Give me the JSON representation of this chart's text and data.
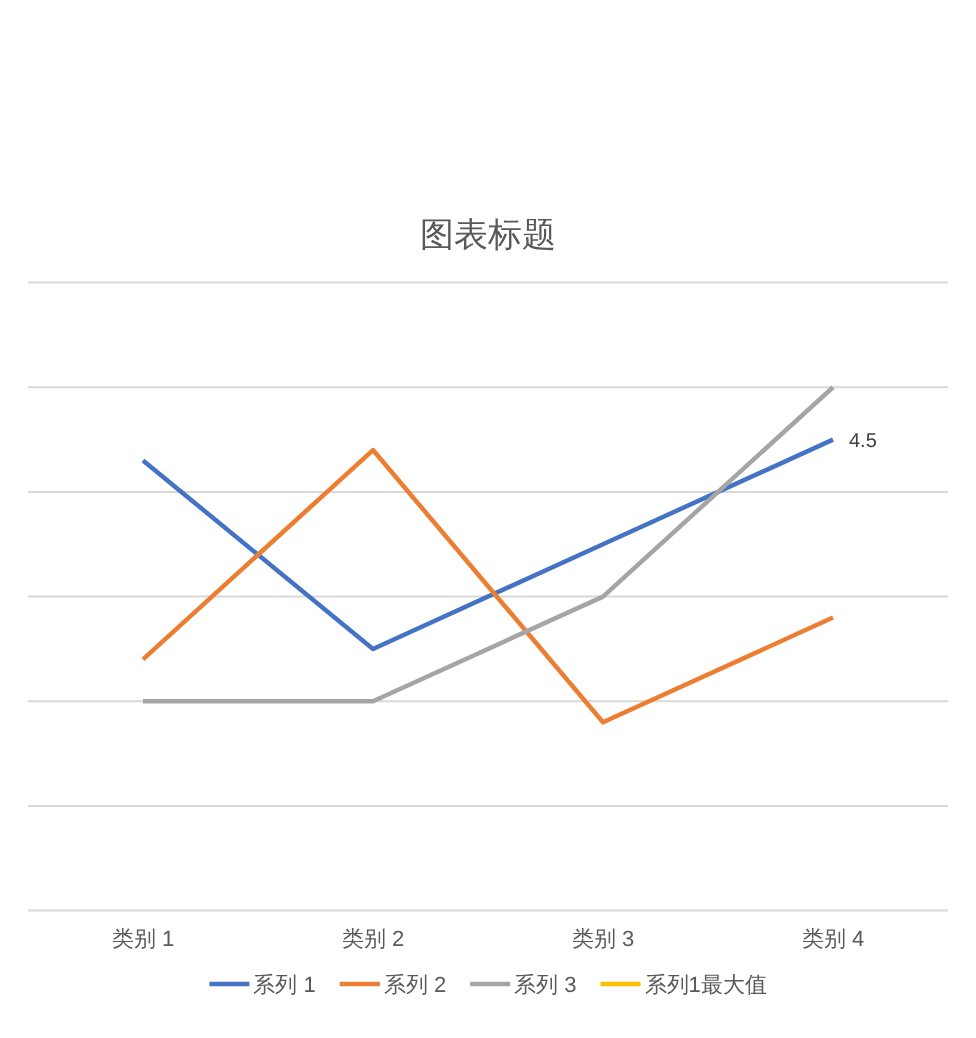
{
  "chart_data": {
    "type": "line",
    "title": "图表标题",
    "categories": [
      "类别 1",
      "类别 2",
      "类别 3",
      "类别 4"
    ],
    "series": [
      {
        "name": "系列 1",
        "color": "#4472c4",
        "values": [
          4.3,
          2.5,
          3.5,
          4.5
        ],
        "value_labels": [
          null,
          null,
          null,
          "4.5"
        ]
      },
      {
        "name": "系列 2",
        "color": "#ed7d31",
        "values": [
          2.4,
          4.4,
          1.8,
          2.8
        ]
      },
      {
        "name": "系列 3",
        "color": "#a5a5a5",
        "values": [
          2,
          2,
          3,
          5
        ]
      },
      {
        "name": "系列1最大值",
        "color": "#ffc000",
        "values": [
          null,
          null,
          null,
          null
        ]
      }
    ],
    "ylim": [
      0,
      6
    ],
    "yticks": [
      {
        "value": 0,
        "label": null
      },
      {
        "value": 1,
        "label": null
      },
      {
        "value": 2,
        "label": null
      },
      {
        "value": 3,
        "label": null
      },
      {
        "value": 4,
        "label": null
      },
      {
        "value": 5,
        "label": null
      },
      {
        "value": 6,
        "label": null
      }
    ],
    "grid": "y",
    "legend": "bottom",
    "tick_labels": "x"
  }
}
